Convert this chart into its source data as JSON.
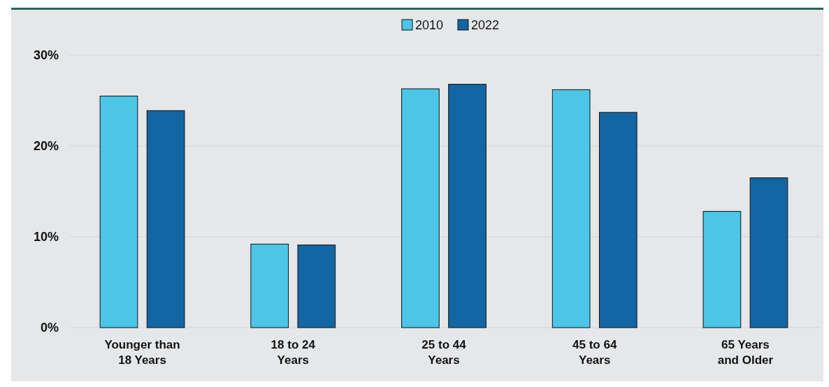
{
  "chart_data": {
    "type": "bar",
    "categories": [
      "Younger than 18 Years",
      "18 to 24 Years",
      "25 to 44 Years",
      "45 to 64 Years",
      "65 Years and Older"
    ],
    "series": [
      {
        "name": "2010",
        "color": "#4bc6e8",
        "values": [
          25.5,
          9.2,
          26.3,
          26.2,
          12.8
        ]
      },
      {
        "name": "2022",
        "color": "#1366a4",
        "values": [
          23.9,
          9.1,
          26.8,
          23.7,
          16.5
        ]
      }
    ],
    "ylim": [
      0,
      30
    ],
    "yticks": [
      {
        "value": 0,
        "label": "0%"
      },
      {
        "value": 10,
        "label": "10%"
      },
      {
        "value": 20,
        "label": "20%"
      },
      {
        "value": 30,
        "label": "30%"
      }
    ],
    "grid": "y",
    "legend": "top"
  }
}
